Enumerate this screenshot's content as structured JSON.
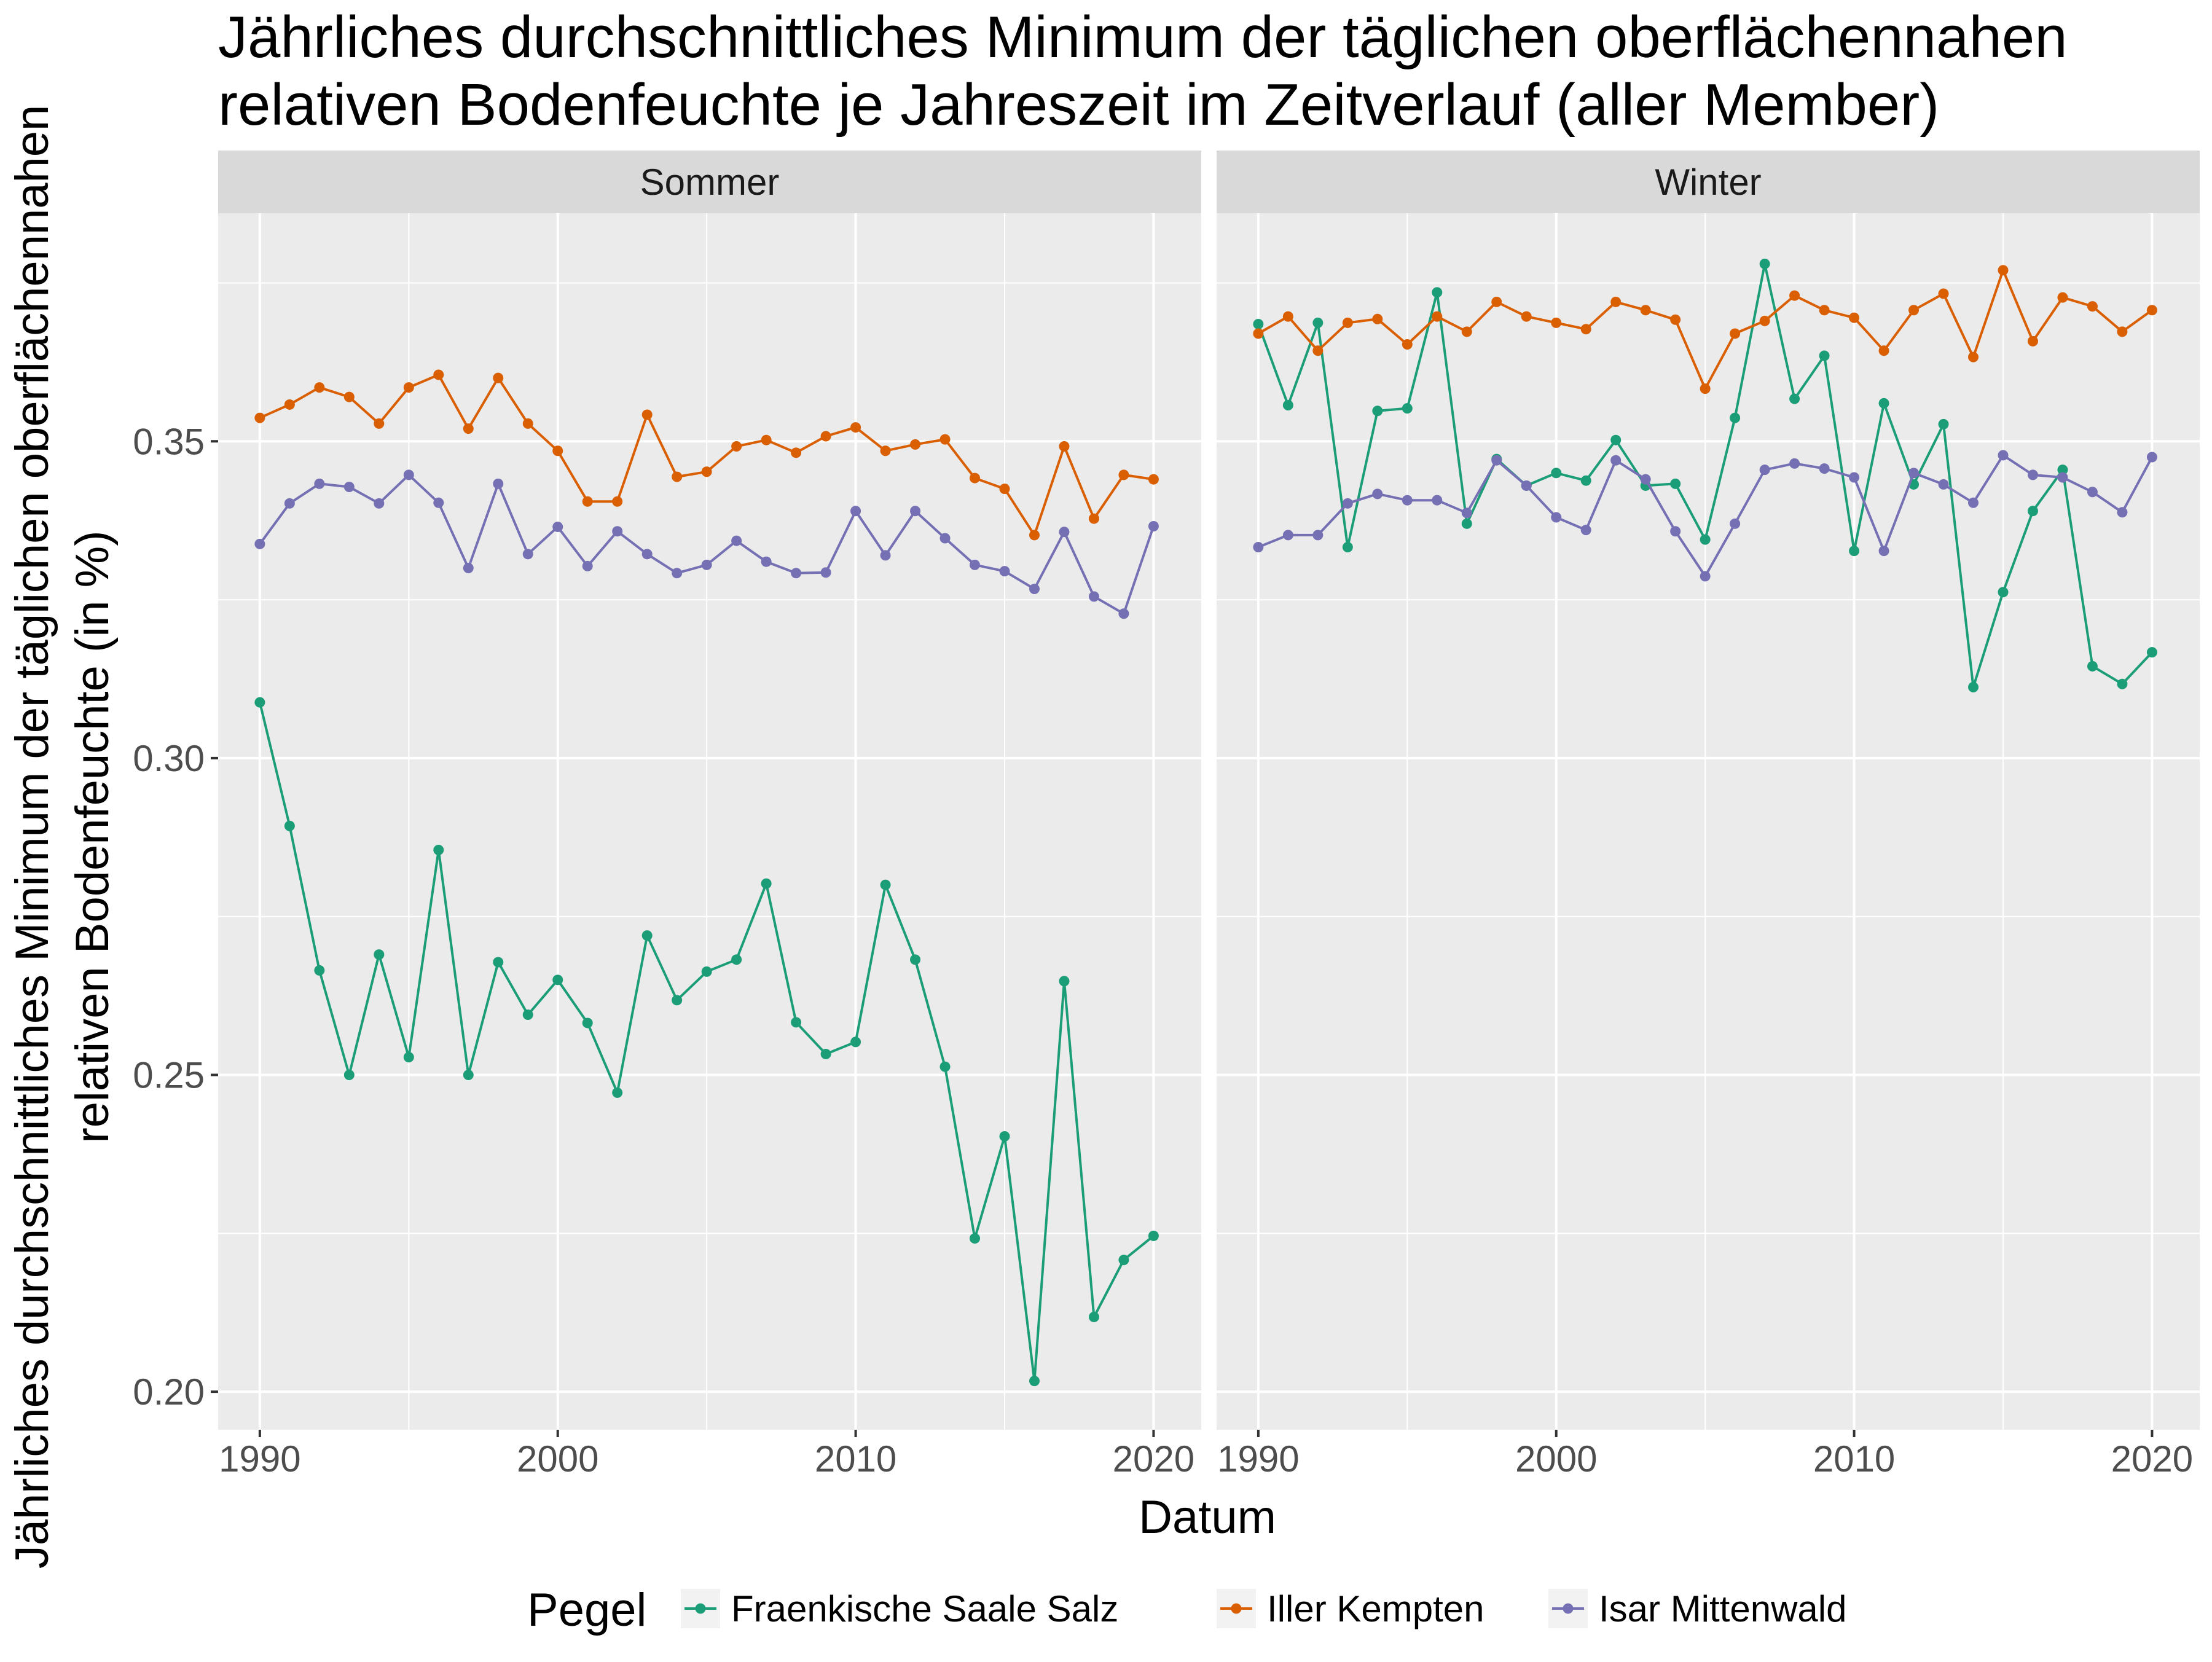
{
  "chart_data": {
    "type": "line",
    "title": "Jährliches durchschnittliches Minimum der täglichen oberflächennahen relativen Bodenfeuchte je Jahreszeit im Zeitverlauf (aller Member)",
    "title_lines": [
      "Jährliches durchschnittliches Minimum der täglichen oberflächennahen",
      "relativen Bodenfeuchte je Jahreszeit im Zeitverlauf (aller Member)"
    ],
    "xlabel": "Datum",
    "ylabel": "Jährliches durchschnittliches Minimum der täglichen oberflächennahen relativen Bodenfeuchte (in %)",
    "ylabel_lines": [
      "Jährliches durchschnittliches Minimum der täglichen oberflächennahen",
      "relativen Bodenfeuchte (in %)"
    ],
    "xlim": [
      1988.6,
      2021.6
    ],
    "ylim": [
      0.194,
      0.386
    ],
    "x_ticks": [
      1990,
      2000,
      2010,
      2020
    ],
    "x_tick_labels": [
      "1990",
      "2000",
      "2010",
      "2020"
    ],
    "y_ticks": [
      0.2,
      0.25,
      0.3,
      0.35
    ],
    "y_tick_labels": [
      "0.20",
      "0.25",
      "0.30",
      "0.35"
    ],
    "grid": true,
    "legend": {
      "title": "Pegel",
      "position": "bottom",
      "entries": [
        "Fraenkische Saale Salz",
        "Iller Kempten",
        "Isar Mittenwald"
      ]
    },
    "colors": {
      "Fraenkische Saale Salz": "#1b9e77",
      "Iller Kempten": "#d95f02",
      "Isar Mittenwald": "#7570b3",
      "panel_background": "#ebebeb",
      "strip_background": "#d9d9d9",
      "gridline": "#ffffff"
    },
    "x": [
      1990,
      1991,
      1992,
      1993,
      1994,
      1995,
      1996,
      1997,
      1998,
      1999,
      2000,
      2001,
      2002,
      2003,
      2004,
      2005,
      2006,
      2007,
      2008,
      2009,
      2010,
      2011,
      2012,
      2013,
      2014,
      2015,
      2016,
      2017,
      2018,
      2019,
      2020
    ],
    "facets": [
      {
        "name": "Sommer",
        "series": [
          {
            "name": "Fraenkische Saale Salz",
            "values": [
              0.3088,
              0.2893,
              0.2665,
              0.25,
              0.269,
              0.2528,
              0.2855,
              0.25,
              0.2678,
              0.2595,
              0.265,
              0.2582,
              0.2472,
              0.272,
              0.2618,
              0.2663,
              0.2682,
              0.2802,
              0.2583,
              0.2533,
              0.2552,
              0.28,
              0.2682,
              0.2513,
              0.2242,
              0.2403,
              0.2017,
              0.2648,
              0.2118,
              0.2208,
              0.2246
            ]
          },
          {
            "name": "Iller Kempten",
            "values": [
              0.3537,
              0.3558,
              0.3585,
              0.357,
              0.3528,
              0.3585,
              0.3605,
              0.352,
              0.36,
              0.3528,
              0.3485,
              0.3405,
              0.3405,
              0.3542,
              0.3444,
              0.3452,
              0.3492,
              0.3502,
              0.3482,
              0.3508,
              0.3522,
              0.3485,
              0.3495,
              0.3503,
              0.3442,
              0.3425,
              0.3352,
              0.3492,
              0.3378,
              0.3447,
              0.344
            ]
          },
          {
            "name": "Isar Mittenwald",
            "values": [
              0.3338,
              0.3402,
              0.3433,
              0.3428,
              0.3402,
              0.3447,
              0.3403,
              0.33,
              0.3433,
              0.3322,
              0.3365,
              0.3303,
              0.3358,
              0.3322,
              0.3292,
              0.3305,
              0.3343,
              0.331,
              0.3292,
              0.3293,
              0.339,
              0.332,
              0.339,
              0.3347,
              0.3305,
              0.3295,
              0.3267,
              0.3357,
              0.3255,
              0.3228,
              0.3366
            ]
          }
        ]
      },
      {
        "name": "Winter",
        "series": [
          {
            "name": "Fraenkische Saale Salz",
            "values": [
              0.3685,
              0.3557,
              0.3687,
              0.3333,
              0.3548,
              0.3552,
              0.3735,
              0.337,
              0.3472,
              0.343,
              0.345,
              0.3438,
              0.3502,
              0.343,
              0.3433,
              0.3345,
              0.3537,
              0.378,
              0.3567,
              0.3635,
              0.3327,
              0.356,
              0.3432,
              0.3527,
              0.3112,
              0.3262,
              0.339,
              0.3455,
              0.3145,
              0.3117,
              0.3167
            ]
          },
          {
            "name": "Iller Kempten",
            "values": [
              0.367,
              0.3697,
              0.3643,
              0.3687,
              0.3693,
              0.3653,
              0.3697,
              0.3673,
              0.372,
              0.3697,
              0.3687,
              0.3677,
              0.372,
              0.3707,
              0.3692,
              0.3583,
              0.367,
              0.369,
              0.373,
              0.3707,
              0.3695,
              0.3643,
              0.3707,
              0.3733,
              0.3633,
              0.377,
              0.3658,
              0.3727,
              0.3713,
              0.3673,
              0.3707
            ]
          },
          {
            "name": "Isar Mittenwald",
            "values": [
              0.3333,
              0.3352,
              0.3352,
              0.3402,
              0.3417,
              0.3407,
              0.3407,
              0.3387,
              0.347,
              0.343,
              0.338,
              0.336,
              0.347,
              0.344,
              0.3358,
              0.3287,
              0.337,
              0.3455,
              0.3465,
              0.3457,
              0.3443,
              0.3327,
              0.345,
              0.3432,
              0.3403,
              0.3478,
              0.3447,
              0.3443,
              0.342,
              0.3388,
              0.3475
            ]
          }
        ]
      }
    ]
  }
}
